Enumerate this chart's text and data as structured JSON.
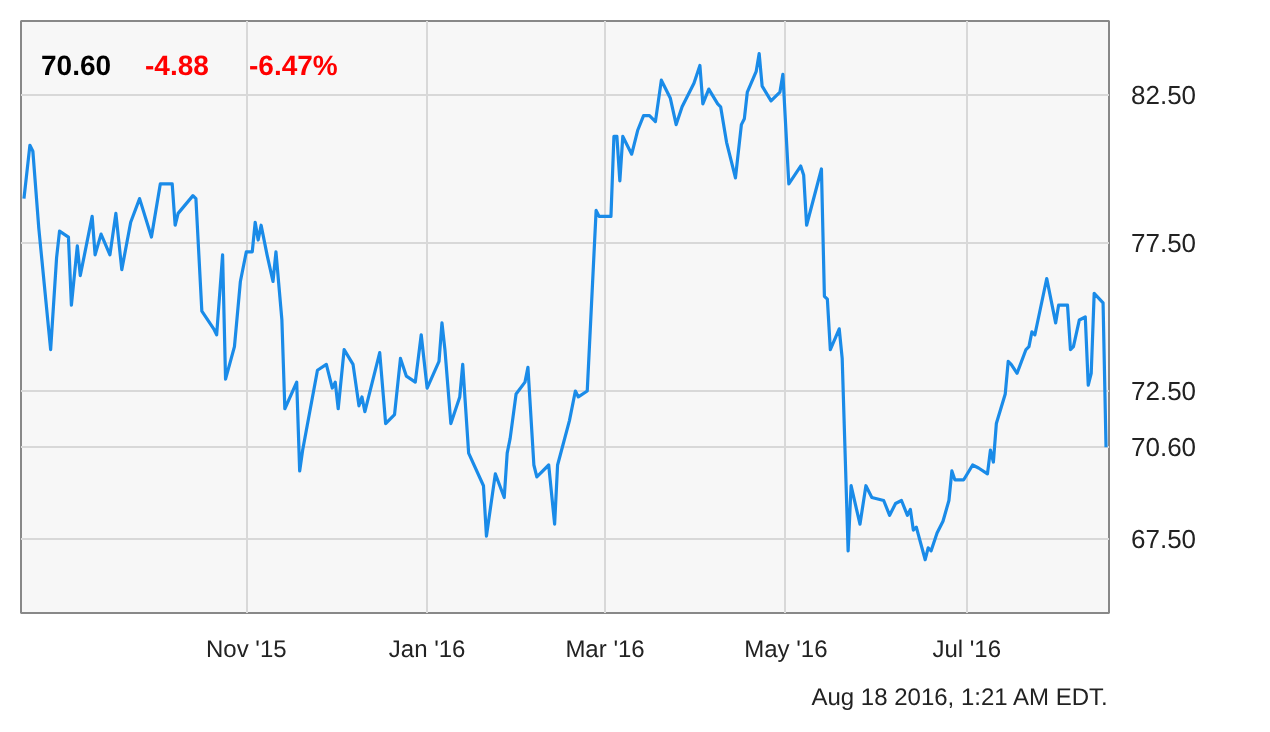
{
  "chart_data": {
    "type": "line",
    "x": [
      "2015-08-18",
      "2015-08-20",
      "2015-08-21",
      "2015-08-23",
      "2015-08-27",
      "2015-08-29",
      "2015-08-30",
      "2015-09-02",
      "2015-09-03",
      "2015-09-05",
      "2015-09-06",
      "2015-09-10",
      "2015-09-11",
      "2015-09-13",
      "2015-09-16",
      "2015-09-18",
      "2015-09-20",
      "2015-09-23",
      "2015-09-26",
      "2015-09-30",
      "2015-10-03",
      "2015-10-07",
      "2015-10-08",
      "2015-10-09",
      "2015-10-14",
      "2015-10-15",
      "2015-10-17",
      "2015-10-21",
      "2015-10-22",
      "2015-10-24",
      "2015-10-25",
      "2015-10-28",
      "2015-10-30",
      "2015-11-01",
      "2015-11-03",
      "2015-11-04",
      "2015-11-05",
      "2015-11-06",
      "2015-11-08",
      "2015-11-10",
      "2015-11-11",
      "2015-11-13",
      "2015-11-14",
      "2015-11-18",
      "2015-11-19",
      "2015-11-20",
      "2015-11-25",
      "2015-11-28",
      "2015-11-30",
      "2015-12-01",
      "2015-12-02",
      "2015-12-04",
      "2015-12-07",
      "2015-12-09",
      "2015-12-10",
      "2015-12-11",
      "2015-12-16",
      "2015-12-18",
      "2015-12-21",
      "2015-12-23",
      "2015-12-25",
      "2015-12-28",
      "2015-12-30",
      "2016-01-01",
      "2016-01-05",
      "2016-01-06",
      "2016-01-07",
      "2016-01-09",
      "2016-01-12",
      "2016-01-13",
      "2016-01-15",
      "2016-01-20",
      "2016-01-21",
      "2016-01-24",
      "2016-01-27",
      "2016-01-28",
      "2016-01-29",
      "2016-01-31",
      "2016-02-03",
      "2016-02-04",
      "2016-02-06",
      "2016-02-07",
      "2016-02-11",
      "2016-02-13",
      "2016-02-14",
      "2016-02-18",
      "2016-02-20",
      "2016-02-21",
      "2016-02-24",
      "2016-02-27",
      "2016-02-28",
      "2016-03-03",
      "2016-03-04",
      "2016-03-05",
      "2016-03-06",
      "2016-03-07",
      "2016-03-10",
      "2016-03-12",
      "2016-03-14",
      "2016-03-16",
      "2016-03-18",
      "2016-03-20",
      "2016-03-23",
      "2016-03-25",
      "2016-03-27",
      "2016-03-31",
      "2016-04-02",
      "2016-04-03",
      "2016-04-05",
      "2016-04-08",
      "2016-04-09",
      "2016-04-11",
      "2016-04-14",
      "2016-04-16",
      "2016-04-17",
      "2016-04-18",
      "2016-04-21",
      "2016-04-22",
      "2016-04-23",
      "2016-04-26",
      "2016-04-29",
      "2016-04-30",
      "2016-05-02",
      "2016-05-06",
      "2016-05-07",
      "2016-05-08",
      "2016-05-13",
      "2016-05-14",
      "2016-05-15",
      "2016-05-16",
      "2016-05-19",
      "2016-05-20",
      "2016-05-22",
      "2016-05-23",
      "2016-05-26",
      "2016-05-28",
      "2016-05-30",
      "2016-06-03",
      "2016-06-05",
      "2016-06-07",
      "2016-06-09",
      "2016-06-11",
      "2016-06-12",
      "2016-06-13",
      "2016-06-14",
      "2016-06-17",
      "2016-06-18",
      "2016-06-19",
      "2016-06-21",
      "2016-06-23",
      "2016-06-25",
      "2016-06-26",
      "2016-06-27",
      "2016-06-30",
      "2016-07-03",
      "2016-07-05",
      "2016-07-08",
      "2016-07-09",
      "2016-07-10",
      "2016-07-11",
      "2016-07-14",
      "2016-07-15",
      "2016-07-16",
      "2016-07-18",
      "2016-07-21",
      "2016-07-22",
      "2016-07-23",
      "2016-07-24",
      "2016-07-28",
      "2016-07-31",
      "2016-08-01",
      "2016-08-04",
      "2016-08-05",
      "2016-08-06",
      "2016-08-08",
      "2016-08-10",
      "2016-08-11",
      "2016-08-12",
      "2016-08-13",
      "2016-08-16",
      "2016-08-17"
    ],
    "series": [
      {
        "color": "#1a8be8",
        "values": [
          79.0,
          80.8,
          80.6,
          78.0,
          73.9,
          77.0,
          77.9,
          77.7,
          75.4,
          77.4,
          76.4,
          78.4,
          77.1,
          77.8,
          77.1,
          78.5,
          76.6,
          78.2,
          79.0,
          77.7,
          79.5,
          79.5,
          78.1,
          78.5,
          79.1,
          79.0,
          75.2,
          74.6,
          74.4,
          77.1,
          72.9,
          74.0,
          76.2,
          77.2,
          77.2,
          78.2,
          77.6,
          78.1,
          77.1,
          76.2,
          77.2,
          74.9,
          71.9,
          72.8,
          69.8,
          70.5,
          73.2,
          73.4,
          72.6,
          72.8,
          71.9,
          73.9,
          73.4,
          72.0,
          72.3,
          71.8,
          73.8,
          71.4,
          71.7,
          73.6,
          73.0,
          72.8,
          74.4,
          72.6,
          73.5,
          74.8,
          73.9,
          71.4,
          72.3,
          73.4,
          70.4,
          69.3,
          67.6,
          69.7,
          68.9,
          70.4,
          70.9,
          72.4,
          72.8,
          73.3,
          70.0,
          69.6,
          70.0,
          68.0,
          70.0,
          71.5,
          72.5,
          72.3,
          72.5,
          78.6,
          78.4,
          78.4,
          81.1,
          81.1,
          79.6,
          81.1,
          80.5,
          81.3,
          81.8,
          81.8,
          81.6,
          83.0,
          82.4,
          81.5,
          82.1,
          82.9,
          83.5,
          82.2,
          82.7,
          82.2,
          82.1,
          80.9,
          79.7,
          81.5,
          81.7,
          82.6,
          83.3,
          83.9,
          82.8,
          82.3,
          82.6,
          83.2,
          79.5,
          80.1,
          79.8,
          78.1,
          80.0,
          75.7,
          75.6,
          73.9,
          74.6,
          73.6,
          67.1,
          69.3,
          68.0,
          69.3,
          68.9,
          68.8,
          68.3,
          68.7,
          68.8,
          68.3,
          68.5,
          67.8,
          67.9,
          66.8,
          67.2,
          67.1,
          67.7,
          68.1,
          68.8,
          69.8,
          69.5,
          69.5,
          70.0,
          69.9,
          69.7,
          70.5,
          70.1,
          71.4,
          72.4,
          73.5,
          73.4,
          73.1,
          73.9,
          74.0,
          74.5,
          74.4,
          76.3,
          74.8,
          75.4,
          75.4,
          73.9,
          74.0,
          74.9,
          75.0,
          72.7,
          73.1,
          75.8,
          75.48,
          70.6
        ]
      }
    ],
    "xlim": [
      "2015-08-17",
      "2016-08-18"
    ],
    "xticks": [
      {
        "value": "2015-11-01",
        "label": "Nov '15"
      },
      {
        "value": "2016-01-01",
        "label": "Jan '16"
      },
      {
        "value": "2016-03-01",
        "label": "Mar '16"
      },
      {
        "value": "2016-05-01",
        "label": "May '16"
      },
      {
        "value": "2016-07-01",
        "label": "Jul '16"
      }
    ],
    "ylim": [
      65.0,
      85.0
    ],
    "yticks": [
      {
        "value": 67.5,
        "label": "67.50"
      },
      {
        "value": 70.6,
        "label": "70.60"
      },
      {
        "value": 72.5,
        "label": "72.50"
      },
      {
        "value": 77.5,
        "label": "77.50"
      },
      {
        "value": 82.5,
        "label": "82.50"
      }
    ],
    "grid": true,
    "marker": "none",
    "line_style": "solid",
    "annotations": [
      "70.60",
      "-4.88",
      "-6.47%",
      "Aug 18 2016, 1:21 AM EDT."
    ]
  }
}
